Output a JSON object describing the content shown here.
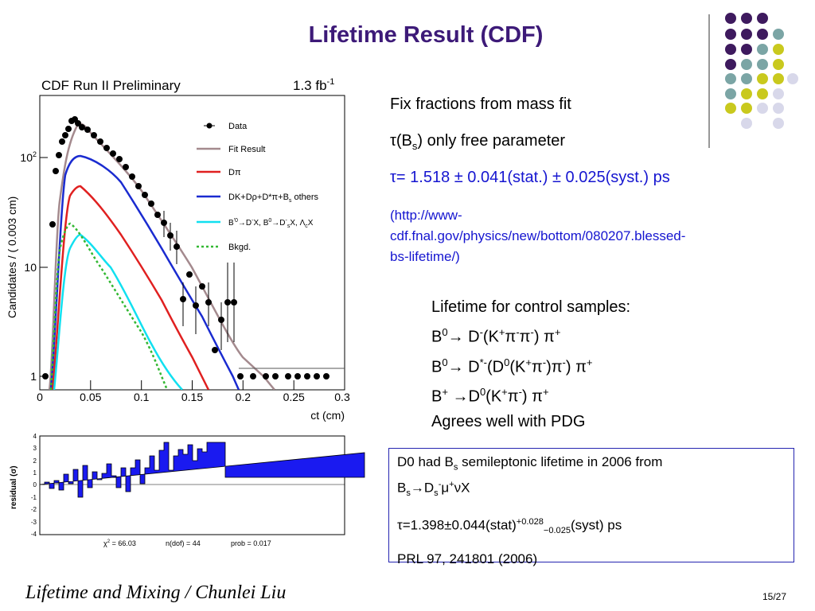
{
  "title": "Lifetime Result (CDF)",
  "plot": {
    "header": "CDF Run II Preliminary",
    "lumi": [
      "1.3 fb",
      "-1"
    ],
    "y_label": "Candidates / ( 0.003  cm)",
    "x_label": "ct (cm)",
    "x_ticks": [
      "0",
      "0.05",
      "0.1",
      "0.15",
      "0.2",
      "0.25",
      "0.3"
    ],
    "y_ticks": [
      [
        "1"
      ],
      [
        "10"
      ],
      [
        "10",
        "2"
      ]
    ],
    "legend": [
      [
        "Data"
      ],
      [
        "Fit Result"
      ],
      [
        "Dπ"
      ],
      [
        "DK+Dρ+D*π+B",
        "s",
        " others"
      ],
      [
        "B",
        "'0",
        "→D",
        "-",
        "X, B",
        "0",
        "→D",
        "-",
        "s",
        "X, Λ",
        "c",
        "X"
      ],
      [
        "Bkgd."
      ]
    ]
  },
  "residual": {
    "y_label": "residual (σ)",
    "y_ticks": [
      "4",
      "3",
      "2",
      "1",
      "0",
      "-1",
      "-2",
      "-3",
      "-4"
    ],
    "stats": [
      "χ",
      "2",
      " = 66.03",
      "n(dof) = 44",
      "prob = 0.017"
    ]
  },
  "bullets": {
    "line1": "Fix fractions from mass fit",
    "line2": [
      "τ(B",
      "s",
      ") only free parameter"
    ],
    "line3": "τ= 1.518 ± 0.041(stat.) ± 0.025(syst.) ps",
    "link": [
      "(http://www-",
      "cdf.fnal.gov/physics/new/bottom/080207.blessed-",
      "bs-lifetime/)"
    ]
  },
  "control": {
    "heading": "Lifetime for control samples:",
    "row1": [
      "B",
      "0",
      "→ D",
      "-",
      "(K",
      "+",
      "π",
      "-",
      "π",
      "-",
      ") π",
      "+"
    ],
    "row2": [
      "B",
      "0",
      "→ D",
      "*-",
      "(D",
      "0",
      "(K",
      "+",
      "π",
      "-",
      ")π",
      "-",
      ") π",
      "+"
    ],
    "row3": [
      "B",
      "+",
      " →D",
      "0",
      "(K",
      "+",
      "π",
      "-",
      ") π",
      "+"
    ],
    "row4": "Agrees well with PDG"
  },
  "box": {
    "line1": [
      "D0 had B",
      "s",
      " semileptonic lifetime in 2006 from"
    ],
    "line2": [
      "B",
      "s",
      "→D",
      "s",
      "-",
      "μ",
      "+",
      "νX"
    ],
    "line3": [
      "τ=1.398±0.044(stat)",
      "+0.028",
      "−0.025",
      "(syst) ps"
    ],
    "line4": "PRL 97, 241801 (2006)"
  },
  "footer": "Lifetime and Mixing / Chunlei Liu",
  "page": "15/27"
}
